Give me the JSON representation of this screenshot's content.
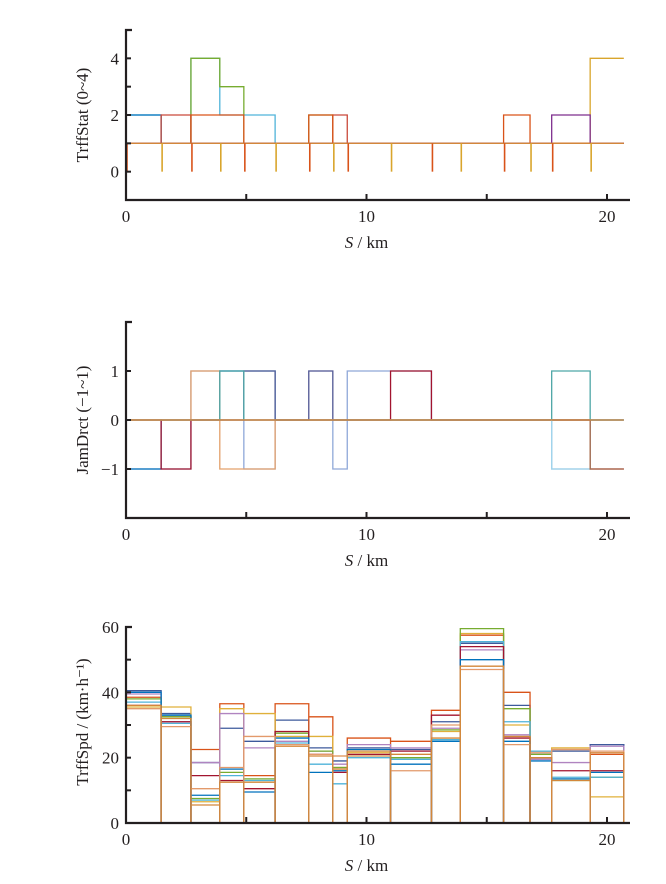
{
  "chart_data": [
    {
      "type": "line",
      "step": true,
      "title": "",
      "xlabel_italic": "S",
      "xlabel_rest": " / km",
      "ylabel": "TrffStat (0~4)",
      "xlim": [
        0,
        20.7
      ],
      "ylim": [
        -1,
        5
      ],
      "xticks": [
        0,
        10,
        20
      ],
      "xtick_minor": [
        5,
        15
      ],
      "yticks": [
        0,
        2,
        4
      ],
      "ytick_minor": [
        1,
        3
      ],
      "boundaries": [
        0,
        1.46,
        2.7,
        3.9,
        4.9,
        6.2,
        7.6,
        8.6,
        9.2,
        11.0,
        12.7,
        13.9,
        15.7,
        16.8,
        17.7,
        19.3,
        20.7
      ],
      "series": [
        {
          "name": "s1",
          "color": "#d9a52c",
          "values": [
            1,
            1,
            1,
            1,
            1,
            1,
            1,
            1,
            1,
            1,
            1,
            1,
            1,
            1,
            1,
            4
          ]
        },
        {
          "name": "s2",
          "color": "#4fb3d9",
          "values": [
            2,
            1,
            4,
            2,
            2,
            1,
            1,
            1,
            1,
            1,
            1,
            1,
            1,
            1,
            1,
            1
          ]
        },
        {
          "name": "s3",
          "color": "#77ac30",
          "values": [
            1,
            1,
            4,
            3,
            1,
            1,
            2,
            1,
            1,
            1,
            1,
            1,
            1,
            1,
            1,
            1
          ]
        },
        {
          "name": "s4",
          "color": "#0072bd",
          "values": [
            2,
            1,
            1,
            1,
            1,
            1,
            1,
            1,
            1,
            1,
            1,
            1,
            1,
            1,
            1,
            1
          ]
        },
        {
          "name": "s5",
          "color": "#c9493a",
          "values": [
            1,
            2,
            1,
            1,
            1,
            1,
            1,
            2,
            1,
            1,
            1,
            1,
            1,
            1,
            1,
            1
          ]
        },
        {
          "name": "s6",
          "color": "#d95319",
          "values": [
            1,
            1,
            2,
            2,
            1,
            1,
            2,
            1,
            1,
            1,
            1,
            1,
            2,
            1,
            1,
            1
          ]
        },
        {
          "name": "s7",
          "color": "#7e2f8e",
          "values": [
            1,
            1,
            1,
            1,
            1,
            1,
            1,
            1,
            1,
            1,
            1,
            1,
            1,
            1,
            2,
            1
          ]
        },
        {
          "name": "s8",
          "color": "#d3873a",
          "values": [
            1,
            1,
            1,
            1,
            1,
            1,
            1,
            1,
            1,
            1,
            1,
            1,
            1,
            1,
            1,
            1
          ]
        }
      ],
      "dips_to_zero_at": [
        0,
        1.46,
        2.7,
        3.9,
        4.9,
        6.2,
        7.6,
        8.6,
        9.2,
        11.0,
        12.7,
        13.9,
        15.7,
        16.8,
        17.7,
        19.3
      ]
    },
    {
      "type": "line",
      "step": true,
      "title": "",
      "xlabel_italic": "S",
      "xlabel_rest": " / km",
      "ylabel": "JamDrct (−1~1)",
      "xlim": [
        0,
        20.7
      ],
      "ylim": [
        -2,
        2
      ],
      "xticks": [
        0,
        10,
        20
      ],
      "xtick_minor": [
        5,
        15
      ],
      "yticks": [
        -1,
        0,
        1
      ],
      "ytick_minor": [],
      "boundaries": [
        0,
        1.46,
        2.7,
        3.9,
        4.9,
        6.2,
        7.6,
        8.6,
        9.2,
        11.0,
        12.7,
        13.9,
        15.7,
        16.8,
        17.7,
        19.3,
        20.7
      ],
      "series": [
        {
          "name": "s1",
          "color": "#8fa8d8",
          "values": [
            -1,
            -1,
            1,
            1,
            -1,
            0,
            1,
            -1,
            1,
            1,
            0,
            0,
            0,
            0,
            -1,
            0
          ]
        },
        {
          "name": "s2",
          "color": "#0072bd",
          "values": [
            -1,
            0,
            0,
            1,
            1,
            0,
            0,
            0,
            0,
            0,
            0,
            0,
            0,
            0,
            0,
            0
          ]
        },
        {
          "name": "s3",
          "color": "#a2142f",
          "values": [
            0,
            -1,
            0,
            0,
            0,
            0,
            0,
            0,
            0,
            1,
            0,
            0,
            0,
            0,
            0,
            -1
          ]
        },
        {
          "name": "s4",
          "color": "#e3a06b",
          "values": [
            0,
            0,
            1,
            -1,
            -1,
            0,
            0,
            0,
            0,
            0,
            0,
            0,
            0,
            0,
            0,
            0
          ]
        },
        {
          "name": "s5",
          "color": "#5b5f97",
          "values": [
            0,
            0,
            0,
            0,
            1,
            0,
            1,
            0,
            0,
            0,
            0,
            0,
            0,
            0,
            0,
            0
          ]
        },
        {
          "name": "s6",
          "color": "#4da6a6",
          "values": [
            0,
            0,
            0,
            1,
            0,
            0,
            0,
            0,
            0,
            0,
            0,
            0,
            0,
            0,
            1,
            0
          ]
        },
        {
          "name": "s7",
          "color": "#a0d6ec",
          "values": [
            0,
            0,
            0,
            0,
            0,
            0,
            0,
            0,
            0,
            0,
            0,
            0,
            0,
            0,
            -1,
            0
          ]
        },
        {
          "name": "s8",
          "color": "#a86b4a",
          "values": [
            0,
            0,
            0,
            0,
            0,
            0,
            0,
            0,
            0,
            0,
            0,
            0,
            0,
            0,
            0,
            -1
          ]
        },
        {
          "name": "s9",
          "color": "#d3873a",
          "values": [
            0,
            0,
            0,
            0,
            0,
            0,
            0,
            0,
            0,
            0,
            0,
            0,
            0,
            0,
            0,
            0
          ]
        }
      ]
    },
    {
      "type": "line",
      "step": true,
      "title": "",
      "xlabel_italic": "S",
      "xlabel_rest": " / km",
      "ylabel": "TrffSpd / (km·h⁻¹)",
      "xlim": [
        0,
        20.7
      ],
      "ylim": [
        0,
        60
      ],
      "xticks": [
        0,
        10,
        20
      ],
      "xtick_minor": [
        5,
        15
      ],
      "yticks": [
        0,
        20,
        40,
        60
      ],
      "ytick_minor": [
        10,
        30,
        50
      ],
      "boundaries": [
        0,
        1.46,
        2.7,
        3.9,
        4.9,
        6.2,
        7.6,
        8.6,
        9.2,
        11.0,
        12.7,
        13.9,
        15.7,
        16.8,
        17.7,
        19.3,
        20.7
      ],
      "series": [
        {
          "name": "s1",
          "color": "#3d5a9c",
          "values": [
            40.5,
            33.5,
            18.5,
            29,
            25,
            31.5,
            23,
            19,
            23,
            22.5,
            31,
            55,
            36,
            21,
            22,
            24
          ]
        },
        {
          "name": "s2",
          "color": "#d95319",
          "values": [
            38.5,
            32.5,
            22.5,
            36.5,
            14.5,
            36.5,
            32.5,
            17,
            26,
            25,
            34.5,
            57.5,
            40,
            22,
            22.5,
            21
          ]
        },
        {
          "name": "s3",
          "color": "#e0b03a",
          "values": [
            35.5,
            35.5,
            6.5,
            35,
            33.5,
            26.5,
            26.5,
            20.5,
            21.5,
            21,
            28,
            58,
            30,
            20,
            23,
            8
          ]
        },
        {
          "name": "s4",
          "color": "#b084c0",
          "values": [
            39.5,
            31,
            18.5,
            33.5,
            23,
            25,
            22,
            18,
            24,
            23,
            29,
            53,
            27,
            19.5,
            18.5,
            23.5
          ]
        },
        {
          "name": "s5",
          "color": "#77ac30",
          "values": [
            38,
            32.5,
            7.5,
            15.5,
            13.5,
            27.5,
            22,
            17,
            20.5,
            20,
            28.5,
            59.5,
            35,
            21,
            13,
            14
          ]
        },
        {
          "name": "s6",
          "color": "#4fb3d9",
          "values": [
            37,
            30.5,
            7,
            14.5,
            13,
            24.5,
            18,
            12,
            20,
            19.5,
            25.5,
            55.5,
            31,
            22,
            14,
            14
          ]
        },
        {
          "name": "s7",
          "color": "#a2142f",
          "values": [
            36,
            31,
            14.5,
            13,
            10.5,
            28,
            21,
            15.5,
            21,
            22,
            33,
            54,
            26,
            20,
            16,
            16
          ]
        },
        {
          "name": "s8",
          "color": "#0072bd",
          "values": [
            40,
            33,
            8.5,
            16.5,
            9.5,
            26,
            15.5,
            16,
            22.5,
            18,
            25,
            50,
            25,
            19,
            13.5,
            15.5
          ]
        },
        {
          "name": "s9",
          "color": "#e39a6b",
          "values": [
            35,
            29.5,
            10.5,
            17,
            26.5,
            24,
            21,
            20.5,
            20.5,
            16,
            30,
            47,
            24,
            21.5,
            22.5,
            22
          ]
        },
        {
          "name": "s10",
          "color": "#d3873a",
          "values": [
            36,
            32,
            5.5,
            12.5,
            12.5,
            23.5,
            20.5,
            16.5,
            22,
            21,
            26,
            48,
            26.5,
            20,
            13,
            21.5
          ]
        }
      ]
    }
  ]
}
